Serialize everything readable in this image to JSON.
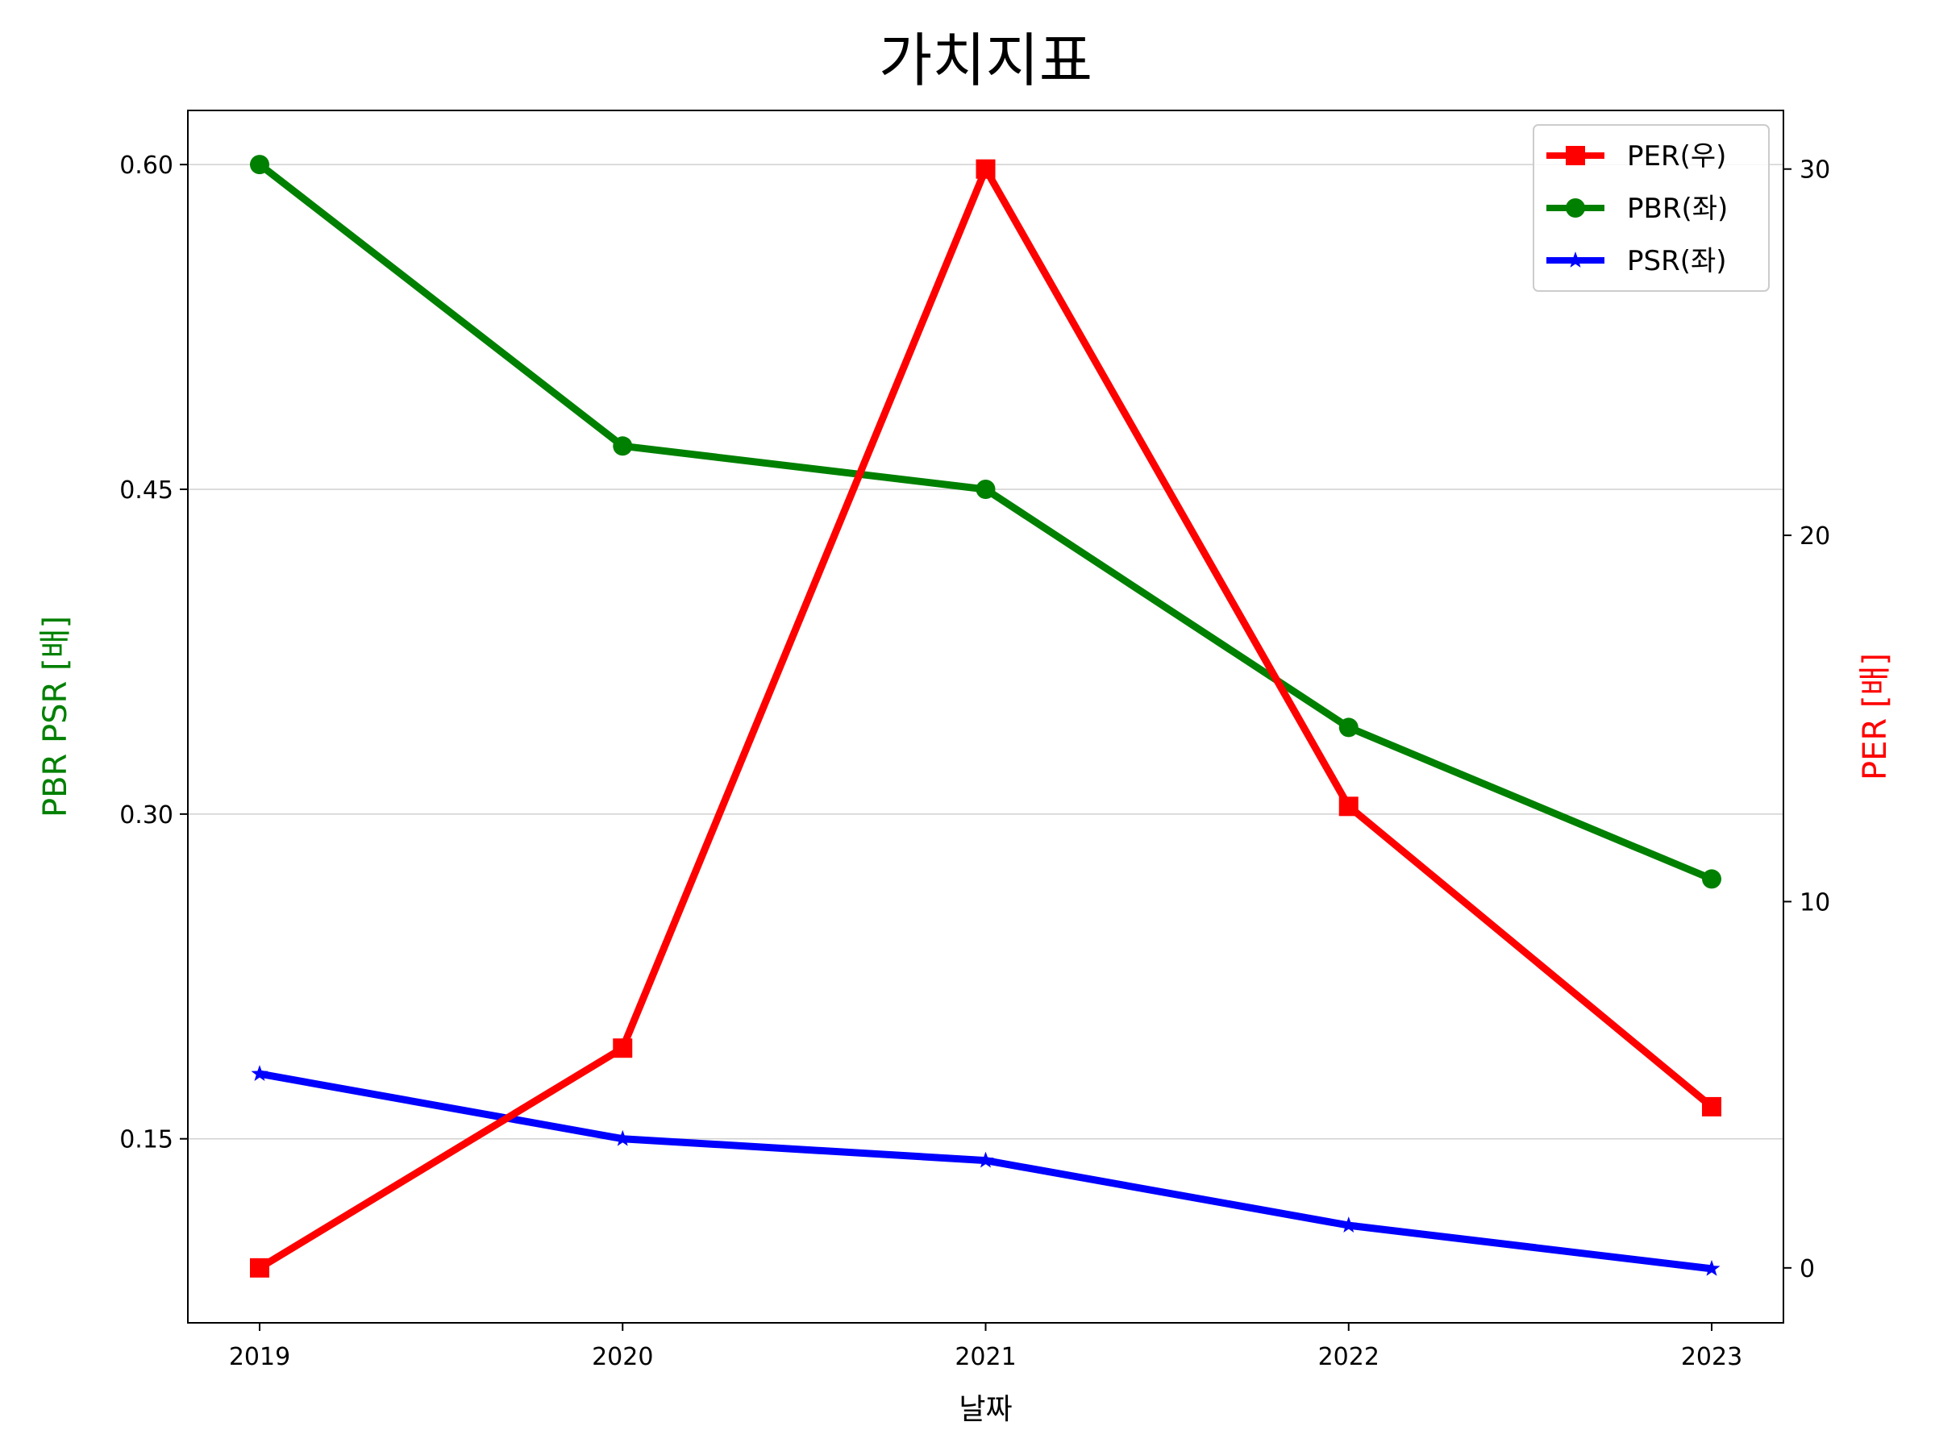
{
  "chart_data": {
    "type": "line",
    "title": "가치지표",
    "xlabel": "날짜",
    "ylabel_left": "PBR PSR [배]",
    "ylabel_right": "PER [배]",
    "categories": [
      "2019",
      "2020",
      "2021",
      "2022",
      "2023"
    ],
    "y_left": {
      "ylim": [
        0.065,
        0.625
      ],
      "ticks": [
        0.15,
        0.3,
        0.45,
        0.6
      ],
      "tick_labels": [
        "0.15",
        "0.30",
        "0.45",
        "0.60"
      ],
      "color": "#008000"
    },
    "y_right": {
      "ylim": [
        -1.5,
        31.6
      ],
      "ticks": [
        0,
        10,
        20,
        30
      ],
      "tick_labels": [
        "0",
        "10",
        "20",
        "30"
      ],
      "color": "#ff0000"
    },
    "grid": "horizontal (left axis)",
    "legend_position": "top-right",
    "series": [
      {
        "name": "PER(우)",
        "axis": "right",
        "color": "#ff0000",
        "marker": "square",
        "values": [
          0.0,
          6.0,
          30.0,
          12.6,
          4.4
        ]
      },
      {
        "name": "PBR(좌)",
        "axis": "left",
        "color": "#008000",
        "marker": "circle",
        "values": [
          0.6,
          0.47,
          0.45,
          0.34,
          0.27
        ]
      },
      {
        "name": "PSR(좌)",
        "axis": "left",
        "color": "#0000ff",
        "marker": "star",
        "values": [
          0.18,
          0.15,
          0.14,
          0.11,
          0.09
        ]
      }
    ]
  }
}
